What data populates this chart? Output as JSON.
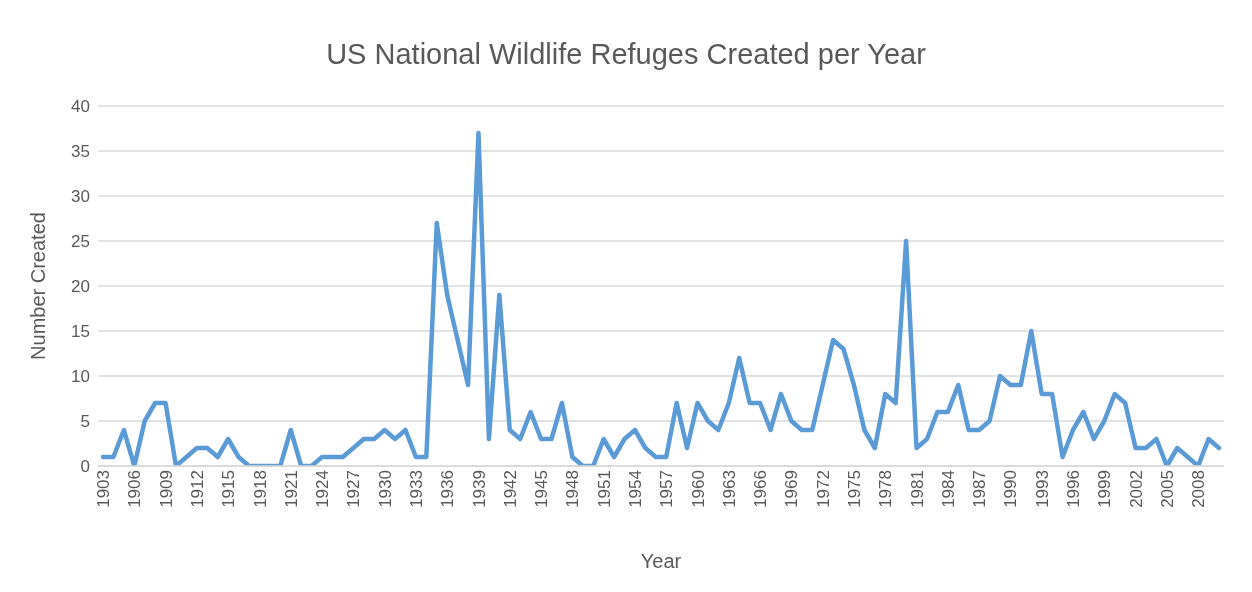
{
  "chart_data": {
    "type": "line",
    "title": "US National Wildlife Refuges Created per Year",
    "xlabel": "Year",
    "ylabel": "Number Created",
    "categories": [
      "1903",
      null,
      null,
      "1906",
      null,
      null,
      "1909",
      null,
      null,
      "1912",
      null,
      null,
      "1915",
      null,
      null,
      "1918",
      null,
      null,
      "1921",
      null,
      null,
      "1924",
      null,
      null,
      "1927",
      null,
      null,
      "1930",
      null,
      null,
      "1933",
      null,
      null,
      "1936",
      null,
      null,
      "1939",
      null,
      null,
      "1942",
      null,
      null,
      "1945",
      null,
      null,
      "1948",
      null,
      null,
      "1951",
      null,
      null,
      "1954",
      null,
      null,
      "1957",
      null,
      null,
      "1960",
      null,
      null,
      "1963",
      null,
      null,
      "1966",
      null,
      null,
      "1969",
      null,
      null,
      "1972",
      null,
      null,
      "1975",
      null,
      null,
      "1978",
      null,
      null,
      "1981",
      null,
      null,
      "1984",
      null,
      null,
      "1987",
      null,
      null,
      "1990",
      null,
      null,
      "1993",
      null,
      null,
      "1996",
      null,
      null,
      "1999",
      null,
      null,
      "2002",
      null,
      null,
      "2005",
      null,
      null,
      "2008",
      null,
      null
    ],
    "series": [
      {
        "color": "#5b9bd5",
        "values": [
          1,
          1,
          4,
          0,
          5,
          7,
          7,
          0,
          1,
          2,
          2,
          1,
          3,
          1,
          0,
          0,
          0,
          0,
          4,
          0,
          0,
          1,
          1,
          1,
          2,
          3,
          3,
          4,
          3,
          4,
          1,
          1,
          27,
          19,
          14,
          9,
          37,
          3,
          19,
          4,
          3,
          6,
          3,
          3,
          7,
          1,
          0,
          0,
          3,
          1,
          3,
          4,
          2,
          1,
          1,
          7,
          2,
          7,
          5,
          4,
          7,
          12,
          7,
          7,
          4,
          8,
          5,
          4,
          4,
          9,
          14,
          13,
          9,
          4,
          2,
          8,
          7,
          25,
          2,
          3,
          6,
          6,
          9,
          4,
          4,
          5,
          10,
          9,
          9,
          15,
          8,
          8,
          1,
          4,
          6,
          3,
          5,
          8,
          7,
          2,
          2,
          3,
          0,
          2,
          1,
          0,
          3,
          2
        ]
      }
    ],
    "ylim": [
      0,
      40
    ],
    "yticks": [
      0,
      5,
      10,
      15,
      20,
      25,
      30,
      35,
      40
    ],
    "grid": "y",
    "legend": false,
    "marker": "none",
    "line_style": "solid"
  }
}
